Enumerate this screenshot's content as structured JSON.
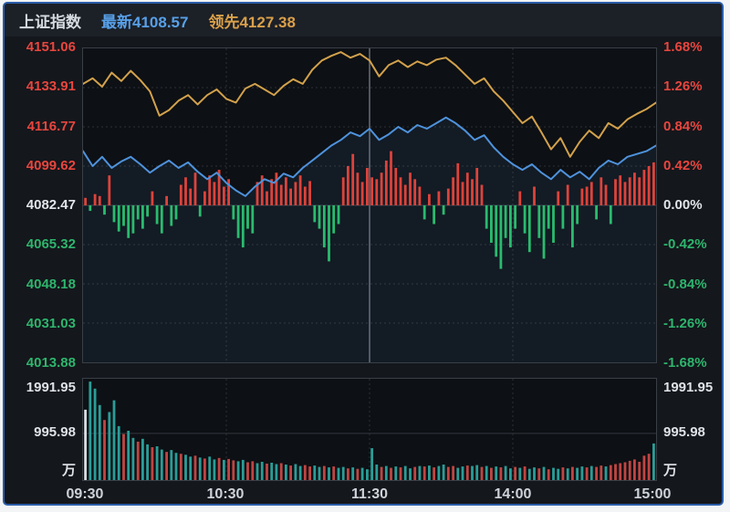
{
  "header": {
    "title": "上证指数",
    "latest_label": "最新",
    "latest_value": "4108.57",
    "lead_label": "领先",
    "lead_value": "4127.38"
  },
  "colors": {
    "frame_border": "#2a5ca8",
    "background": "#0d1014",
    "label_up": "#e8463e",
    "label_flat": "#e2e6ea",
    "label_down": "#2eb56d",
    "label_white": "#dfe3e8",
    "lead_line": "#d2a14c",
    "price_line": "#4e92dc",
    "price_fill": "rgba(80,130,190,0.10)",
    "diff_bar_up": "#dd433b",
    "diff_bar_down": "#2abb6e",
    "volume_up": "#c04543",
    "volume_down": "#2a9d97",
    "volume_first": "#d8dde2",
    "grid": "#2d3138",
    "grid_zero": "#3d424a",
    "grid_center": "#51565e"
  },
  "axes": {
    "price_labels": [
      {
        "text": "4151.06",
        "tone": "up"
      },
      {
        "text": "4133.91",
        "tone": "up"
      },
      {
        "text": "4116.77",
        "tone": "up"
      },
      {
        "text": "4099.62",
        "tone": "up"
      },
      {
        "text": "4082.47",
        "tone": "flat"
      },
      {
        "text": "4065.32",
        "tone": "down"
      },
      {
        "text": "4048.18",
        "tone": "down"
      },
      {
        "text": "4031.03",
        "tone": "down"
      },
      {
        "text": "4013.88",
        "tone": "down"
      }
    ],
    "percent_labels": [
      {
        "text": "1.68%",
        "tone": "up"
      },
      {
        "text": "1.26%",
        "tone": "up"
      },
      {
        "text": "0.84%",
        "tone": "up"
      },
      {
        "text": "0.42%",
        "tone": "up"
      },
      {
        "text": "0.00%",
        "tone": "flat"
      },
      {
        "text": "-0.42%",
        "tone": "down"
      },
      {
        "text": "-0.84%",
        "tone": "down"
      },
      {
        "text": "-1.26%",
        "tone": "down"
      },
      {
        "text": "-1.68%",
        "tone": "down"
      }
    ],
    "volume_labels": [
      "1991.95",
      "995.98",
      "万"
    ],
    "time_labels": [
      "09:30",
      "10:30",
      "11:30",
      "14:00",
      "15:00"
    ]
  },
  "chart_data": [
    {
      "type": "line",
      "name": "lead-line (领先 4127.38)",
      "unit": "percent_change",
      "ylim": [
        -1.68,
        1.68
      ],
      "x_range": [
        "09:30",
        "15:00"
      ],
      "grid": true,
      "values": [
        1.3,
        1.36,
        1.27,
        1.42,
        1.33,
        1.44,
        1.34,
        1.22,
        0.96,
        1.02,
        1.12,
        1.18,
        1.08,
        1.18,
        1.24,
        1.14,
        1.1,
        1.25,
        1.3,
        1.24,
        1.18,
        1.28,
        1.35,
        1.3,
        1.45,
        1.55,
        1.6,
        1.64,
        1.58,
        1.62,
        1.55,
        1.38,
        1.5,
        1.55,
        1.48,
        1.54,
        1.5,
        1.56,
        1.58,
        1.5,
        1.4,
        1.3,
        1.36,
        1.22,
        1.12,
        1.0,
        0.88,
        0.95,
        0.78,
        0.6,
        0.72,
        0.52,
        0.68,
        0.8,
        0.72,
        0.88,
        0.82,
        0.92,
        0.98,
        1.03,
        1.1
      ]
    },
    {
      "type": "line",
      "name": "price-line (上证指数 4108.57)",
      "unit": "percent_change",
      "baseline_price": 4082.47,
      "close_price": 4108.57,
      "ylim": [
        -1.68,
        1.68
      ],
      "x_range": [
        "09:30",
        "15:00"
      ],
      "values": [
        0.58,
        0.42,
        0.52,
        0.4,
        0.47,
        0.52,
        0.44,
        0.35,
        0.42,
        0.48,
        0.4,
        0.46,
        0.36,
        0.28,
        0.35,
        0.24,
        0.16,
        0.1,
        0.2,
        0.28,
        0.24,
        0.34,
        0.3,
        0.4,
        0.48,
        0.56,
        0.64,
        0.7,
        0.78,
        0.74,
        0.82,
        0.7,
        0.76,
        0.84,
        0.78,
        0.86,
        0.82,
        0.88,
        0.94,
        0.88,
        0.8,
        0.7,
        0.75,
        0.62,
        0.52,
        0.44,
        0.38,
        0.44,
        0.35,
        0.28,
        0.38,
        0.3,
        0.36,
        0.28,
        0.4,
        0.48,
        0.44,
        0.52,
        0.55,
        0.58,
        0.64
      ]
    },
    {
      "type": "bar",
      "name": "net-advance bars (red up / green down)",
      "unit": "percent_change",
      "ylim": [
        -1.68,
        1.68
      ],
      "values": [
        0.08,
        -0.06,
        0.12,
        0.1,
        -0.1,
        0.32,
        -0.18,
        -0.28,
        -0.22,
        -0.35,
        -0.3,
        -0.15,
        -0.25,
        -0.12,
        0.15,
        -0.2,
        -0.3,
        0.1,
        -0.22,
        -0.15,
        0.22,
        0.3,
        0.18,
        0.35,
        -0.12,
        0.15,
        0.32,
        0.25,
        0.38,
        0.2,
        0.28,
        -0.15,
        -0.35,
        -0.45,
        -0.25,
        -0.3,
        0.25,
        0.32,
        0.15,
        0.28,
        0.35,
        0.22,
        0.3,
        0.18,
        0.25,
        0.32,
        0.2,
        0.26,
        -0.18,
        -0.25,
        -0.45,
        -0.6,
        -0.3,
        -0.2,
        0.3,
        0.42,
        0.55,
        0.35,
        0.25,
        0.4,
        0.3,
        0.28,
        0.35,
        0.48,
        0.58,
        0.4,
        0.3,
        0.22,
        0.35,
        0.28,
        0.2,
        -0.15,
        0.12,
        -0.2,
        0.15,
        -0.1,
        0.18,
        0.3,
        0.45,
        0.25,
        0.35,
        0.28,
        0.4,
        0.22,
        -0.25,
        -0.4,
        -0.55,
        -0.68,
        -0.35,
        -0.45,
        -0.25,
        0.15,
        -0.3,
        -0.5,
        0.2,
        -0.35,
        -0.57,
        -0.25,
        -0.4,
        0.15,
        -0.25,
        0.22,
        -0.45,
        -0.2,
        0.18,
        0.2,
        0.25,
        -0.15,
        0.3,
        0.22,
        -0.2,
        0.28,
        0.32,
        0.25,
        0.3,
        0.35,
        0.3,
        0.38,
        0.42,
        0.46
      ]
    },
    {
      "type": "bar",
      "name": "volume (万)",
      "unit": "万",
      "ylim": [
        0,
        2160
      ],
      "ticks": [
        995.98,
        1991.95
      ],
      "values": [
        1500,
        2100,
        1950,
        1600,
        1280,
        1450,
        1700,
        1150,
        980,
        1050,
        900,
        820,
        880,
        760,
        700,
        720,
        650,
        600,
        640,
        580,
        560,
        540,
        500,
        520,
        480,
        460,
        500,
        440,
        470,
        430,
        450,
        420,
        400,
        430,
        380,
        400,
        360,
        390,
        350,
        370,
        340,
        360,
        330,
        310,
        340,
        300,
        320,
        290,
        310,
        280,
        300,
        270,
        290,
        260,
        280,
        250,
        270,
        240,
        260,
        230,
        680,
        330,
        280,
        300,
        260,
        290,
        270,
        300,
        250,
        280,
        300,
        290,
        310,
        270,
        300,
        330,
        280,
        300,
        260,
        290,
        310,
        300,
        320,
        280,
        300,
        260,
        290,
        270,
        300,
        250,
        280,
        260,
        290,
        240,
        270,
        250,
        280,
        230,
        260,
        240,
        270,
        250,
        280,
        260,
        290,
        270,
        300,
        280,
        310,
        290,
        320,
        340,
        360,
        380,
        410,
        440,
        390,
        520,
        560,
        780
      ],
      "bar_colors": "wtttrtttrttrttrttrttrttrtrttrtrrttrrttrttrtrttrrttrtrttrtrttttrtrtrttrtrtrttrrttrttrtrtrttrtrttrtrttrtrttrtrrtrrrrrrrrrt"
    }
  ]
}
